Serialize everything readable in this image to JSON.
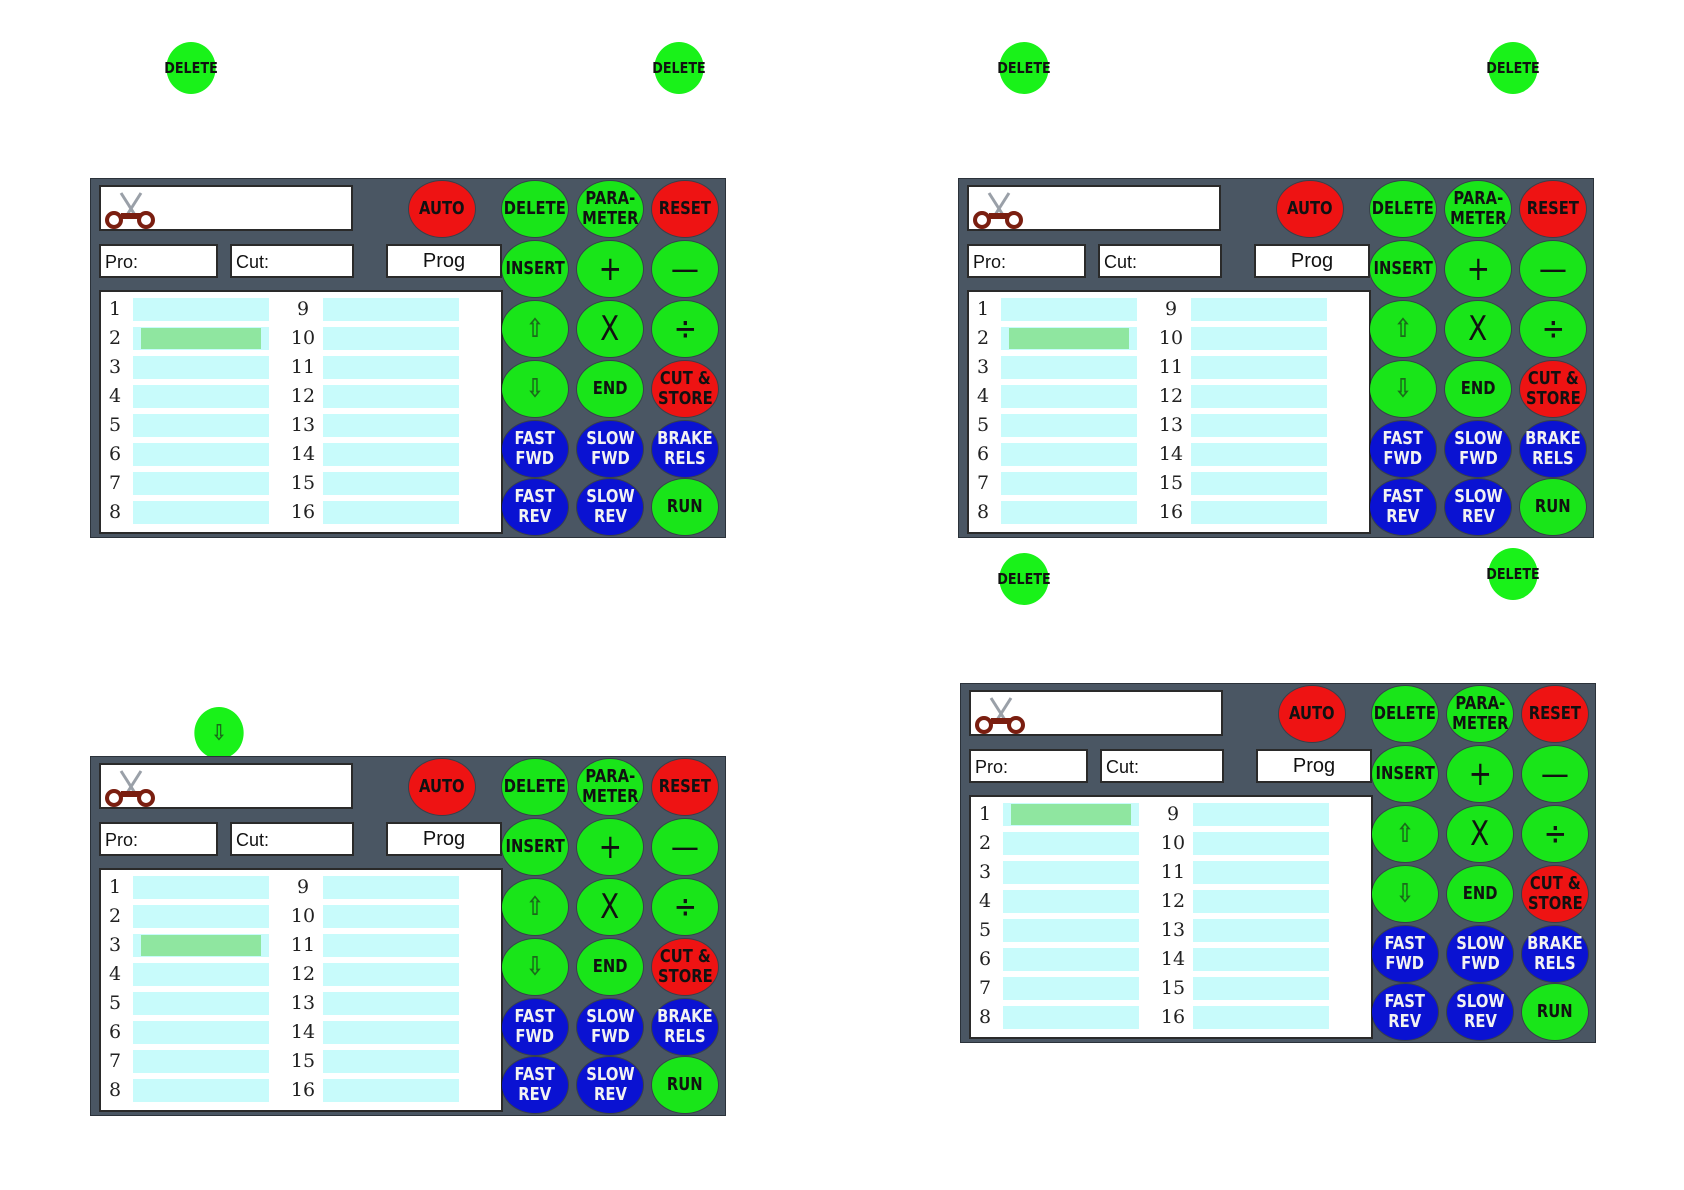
{
  "floating_buttons": [
    {
      "label": "DELETE"
    },
    {
      "label": "DELETE"
    },
    {
      "label": "DELETE"
    },
    {
      "label": "DELETE"
    },
    {
      "label": "DELETE"
    },
    {
      "label": "DELETE"
    },
    {
      "label": "⇩"
    }
  ],
  "panel": {
    "pro_label": "Pro:",
    "cut_label": "Cut:",
    "prog_label": "Prog",
    "buttons": {
      "auto": "AUTO",
      "delete": "DELETE",
      "parameter": "PARA-\nMETER",
      "reset": "RESET",
      "insert": "INSERT",
      "plus": "+",
      "minus": "—",
      "up": "⇧",
      "multiply": "X",
      "divide": "÷",
      "down": "⇩",
      "end": "END",
      "cut_store": "CUT &\nSTORE",
      "fast_fwd": "FAST\nFWD",
      "slow_fwd": "SLOW\nFWD",
      "brake_rels": "BRAKE\nRELS",
      "fast_rev": "FAST\nREV",
      "slow_rev": "SLOW\nREV",
      "run": "RUN"
    },
    "row_numbers_left": [
      "1",
      "2",
      "3",
      "4",
      "5",
      "6",
      "7",
      "8"
    ],
    "row_numbers_right": [
      "9",
      "10",
      "11",
      "12",
      "13",
      "14",
      "15",
      "16"
    ]
  },
  "panels": [
    {
      "id": "panel-top-left",
      "selected_row": 2
    },
    {
      "id": "panel-top-right",
      "selected_row": 2
    },
    {
      "id": "panel-bottom-left",
      "selected_row": 3
    },
    {
      "id": "panel-bottom-right",
      "selected_row": 1
    }
  ],
  "colors": {
    "green": "#19e519",
    "red": "#ee1313",
    "blue": "#0a12d2",
    "panel": "#4a5663",
    "cell": "#c8fbfb",
    "selection": "#8fe6a0"
  }
}
